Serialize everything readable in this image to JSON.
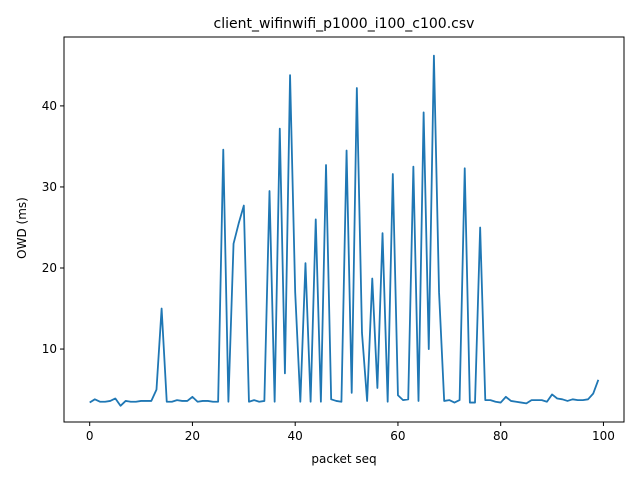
{
  "chart_data": {
    "type": "line",
    "title": "client_wifinwifi_p1000_i100_c100.csv",
    "xlabel": "packet seq",
    "ylabel": "OWD (ms)",
    "xlim": [
      -5,
      104
    ],
    "ylim": [
      1.0,
      48.5
    ],
    "xticks": [
      0,
      20,
      40,
      60,
      80,
      100
    ],
    "yticks": [
      10,
      20,
      30,
      40
    ],
    "grid": false,
    "colors": {
      "line": "#1f77b4",
      "axes": "#000000"
    },
    "series": [
      {
        "x": [
          0,
          1,
          2,
          3,
          4,
          5,
          6,
          7,
          8,
          9,
          10,
          11,
          12,
          13,
          14,
          15,
          16,
          17,
          18,
          19,
          20,
          21,
          22,
          23,
          24,
          25,
          26,
          27,
          28,
          29,
          30,
          31,
          32,
          33,
          34,
          35,
          36,
          37,
          38,
          39,
          40,
          41,
          42,
          43,
          44,
          45,
          46,
          47,
          48,
          49,
          50,
          51,
          52,
          53,
          54,
          55,
          56,
          57,
          58,
          59,
          60,
          61,
          62,
          63,
          64,
          65,
          66,
          67,
          68,
          69,
          70,
          71,
          72,
          73,
          74,
          75,
          76,
          77,
          78,
          79,
          80,
          81,
          82,
          83,
          84,
          85,
          86,
          87,
          88,
          89,
          90,
          91,
          92,
          93,
          94,
          95,
          96,
          97,
          98,
          99
        ],
        "values": [
          3.4,
          3.8,
          3.5,
          3.5,
          3.6,
          3.9,
          3.0,
          3.6,
          3.5,
          3.5,
          3.6,
          3.6,
          3.6,
          5.0,
          15.0,
          3.5,
          3.5,
          3.7,
          3.6,
          3.6,
          4.1,
          3.5,
          3.6,
          3.6,
          3.5,
          3.5,
          34.6,
          3.5,
          23.0,
          25.5,
          27.7,
          3.5,
          3.7,
          3.5,
          3.6,
          29.5,
          3.5,
          37.2,
          7.0,
          43.8,
          17.0,
          3.5,
          20.6,
          3.5,
          26.0,
          3.5,
          32.7,
          3.8,
          3.6,
          3.5,
          34.5,
          4.6,
          42.2,
          12.0,
          3.6,
          18.7,
          5.2,
          24.3,
          3.5,
          31.6,
          4.3,
          3.7,
          3.8,
          32.5,
          3.6,
          39.2,
          10.0,
          46.2,
          17.0,
          3.6,
          3.7,
          3.4,
          3.7,
          32.3,
          3.4,
          3.4,
          25.0,
          3.7,
          3.7,
          3.5,
          3.4,
          4.1,
          3.6,
          3.5,
          3.4,
          3.3,
          3.7,
          3.7,
          3.7,
          3.5,
          4.4,
          3.9,
          3.8,
          3.6,
          3.8,
          3.7,
          3.7,
          3.8,
          4.5,
          6.2
        ]
      }
    ]
  }
}
